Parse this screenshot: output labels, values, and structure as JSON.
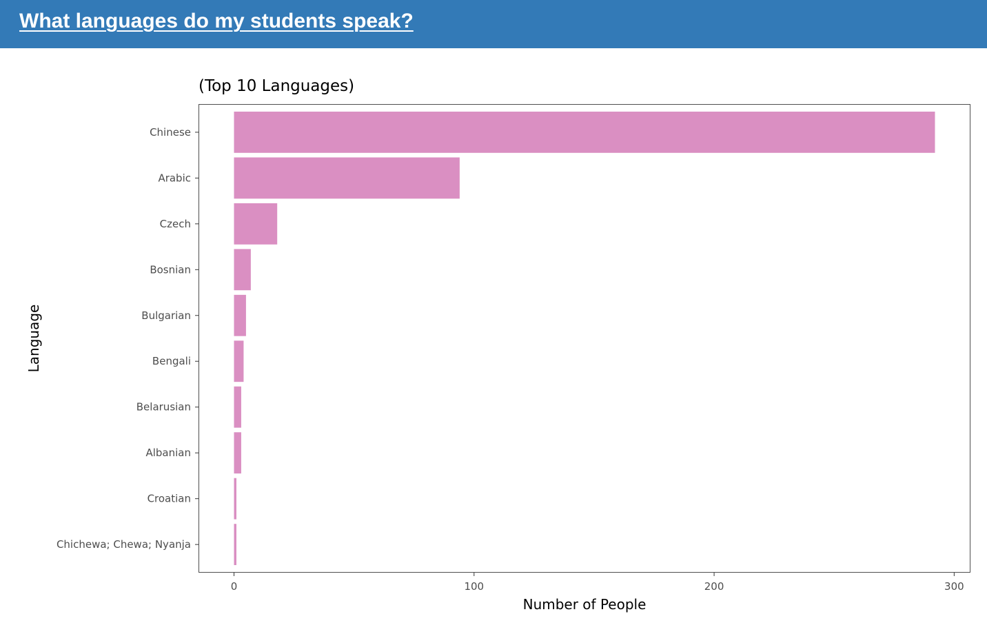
{
  "header": {
    "title": "What languages do my students speak?",
    "background": "#337ab7",
    "text_color": "#ffffff"
  },
  "chart_data": {
    "type": "bar",
    "orientation": "horizontal",
    "title": "(Top 10 Languages)",
    "xlabel": "Number of People",
    "ylabel": "Language",
    "categories": [
      "Chinese",
      "Arabic",
      "Czech",
      "Bosnian",
      "Bulgarian",
      "Bengali",
      "Belarusian",
      "Albanian",
      "Croatian",
      "Chichewa; Chewa; Nyanja"
    ],
    "values": [
      292,
      94,
      18,
      7,
      5,
      4,
      3,
      3,
      1,
      1
    ],
    "xlim": [
      -14.5,
      306.5
    ],
    "xticks": [
      0,
      100,
      200,
      300
    ],
    "xtick_labels": [
      "0",
      "100",
      "200",
      "300"
    ],
    "grid": false,
    "legend": "none",
    "bar_color": "#da8fc2",
    "panel_border_color": "#4d4d4d"
  }
}
